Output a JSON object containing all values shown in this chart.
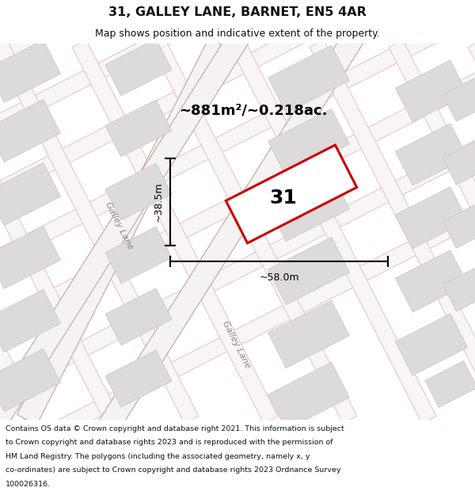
{
  "title": "31, GALLEY LANE, BARNET, EN5 4AR",
  "subtitle": "Map shows position and indicative extent of the property.",
  "area_text": "~881m²/~0.218ac.",
  "property_label": "31",
  "dim_height": "~38.5m",
  "dim_width": "~58.0m",
  "road_label": "Galley Lane",
  "footer_lines": [
    "Contains OS data © Crown copyright and database right 2021. This information is subject",
    "to Crown copyright and database rights 2023 and is reproduced with the permission of",
    "HM Land Registry. The polygons (including the associated geometry, namely x, y",
    "co-ordinates) are subject to Crown copyright and database rights 2023 Ordnance Survey",
    "100026316."
  ],
  "map_bg": "#eeebeb",
  "street_color": "#f0b8b8",
  "building_color": "#dddada",
  "building_edge": "#ccc9c9",
  "road_fill": "#f8f5f5",
  "road_edge": "#e8c0c0",
  "galley_fill": "#f5f2f2",
  "galley_edge": "#ccaaaa",
  "property_edge": "#cc0000",
  "property_fill": "#ffffff",
  "title_color": "#111111",
  "footer_color": "#111111",
  "label_color": "#888888"
}
